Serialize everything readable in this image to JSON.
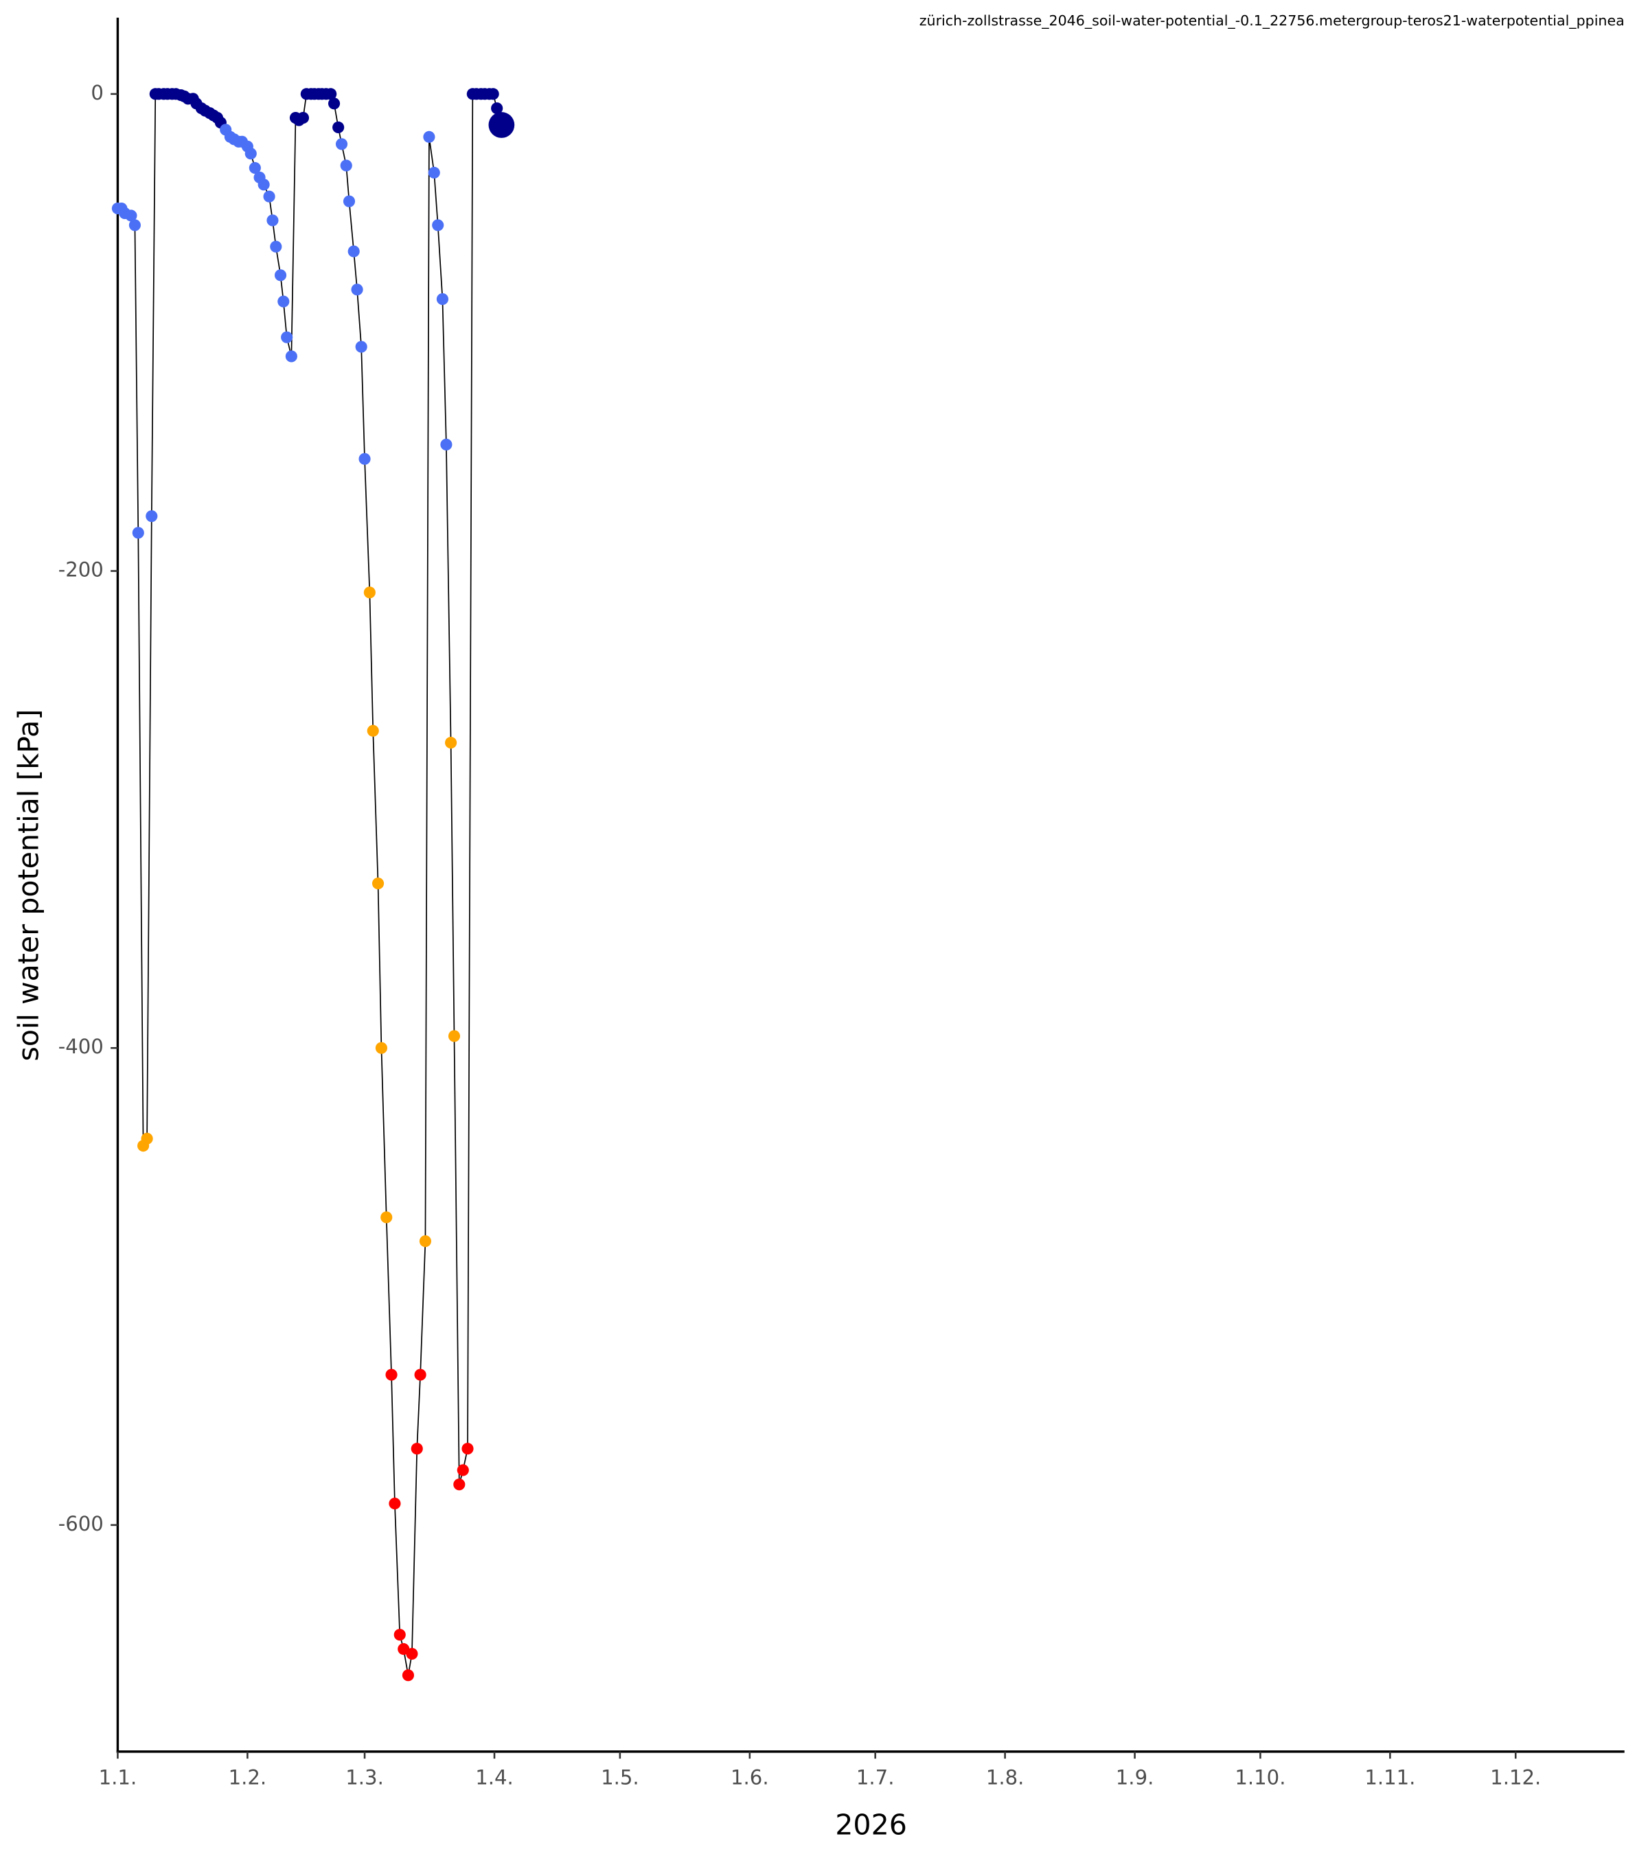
{
  "chart_data": {
    "type": "scatter-line",
    "title": "zürich-zollstrasse_2046_soil-water-potential_-0.1_22756.metergroup-teros21-waterpotential_ppinea",
    "x_label": "2026",
    "y_label": "soil water potential [kPa]",
    "xlim": [
      1,
      361
    ],
    "ylim": [
      -695,
      32
    ],
    "xticks": [
      {
        "value": 1,
        "label": "1.1."
      },
      {
        "value": 32,
        "label": "1.2."
      },
      {
        "value": 60,
        "label": "1.3."
      },
      {
        "value": 91,
        "label": "1.4."
      },
      {
        "value": 121,
        "label": "1.5."
      },
      {
        "value": 152,
        "label": "1.6."
      },
      {
        "value": 182,
        "label": "1.7."
      },
      {
        "value": 213,
        "label": "1.8."
      },
      {
        "value": 244,
        "label": "1.9."
      },
      {
        "value": 274,
        "label": "1.10."
      },
      {
        "value": 305,
        "label": "1.11."
      },
      {
        "value": 335,
        "label": "1.12."
      }
    ],
    "yticks": [
      -600,
      -400,
      -200,
      0
    ],
    "line_color": "#000000",
    "highlight_last": true,
    "x": [
      1,
      1.9,
      2.7,
      4.2,
      5.1,
      5.9,
      7.1,
      8,
      9.1,
      10,
      10.8,
      12,
      12.9,
      14,
      14.9,
      16.1,
      16.9,
      17.8,
      19,
      19.8,
      21,
      21.9,
      23,
      23.9,
      24.8,
      25.6,
      26.8,
      27.9,
      28.8,
      29.9,
      30.7,
      32,
      32.8,
      33.8,
      34.9,
      35.9,
      37.2,
      38,
      38.8,
      39.9,
      40.6,
      41.4,
      42.5,
      43.5,
      44.3,
      45.3,
      46.1,
      47.2,
      48,
      49,
      49.8,
      50.8,
      51.9,
      52.7,
      53.7,
      54.5,
      55.6,
      56.3,
      57.4,
      58.2,
      59.2,
      60,
      61.2,
      62,
      63.2,
      64,
      65.2,
      66.4,
      67.2,
      68.4,
      69.3,
      70.4,
      71.3,
      72.5,
      73.3,
      74.5,
      75.4,
      76.6,
      77.5,
      78.6,
      79.5,
      80.6,
      81.4,
      82.6,
      83.5,
      84.6,
      85.8,
      86.7,
      87.8,
      88.7,
      89.8,
      90.7,
      91.6,
      92.7
    ],
    "values": [
      -48,
      -48,
      -50,
      -51,
      -55,
      -184,
      -441,
      -438,
      -177,
      0,
      0,
      0,
      0,
      0,
      0,
      -0.5,
      -1,
      -2,
      -2,
      -4,
      -6,
      -7,
      -8,
      -9,
      -10,
      -12,
      -15,
      -18,
      -19,
      -20,
      -20,
      -22,
      -25,
      -31,
      -35,
      -38,
      -43,
      -53,
      -64,
      -76,
      -87,
      -102,
      -110,
      -10,
      -11,
      -10,
      0,
      0,
      0,
      0,
      0,
      0,
      0,
      -4,
      -14,
      -21,
      -30,
      -45,
      -66,
      -82,
      -106,
      -153,
      -209,
      -267,
      -331,
      -400,
      -471,
      -537,
      -591,
      -646,
      -652,
      -663,
      -654,
      -568,
      -537,
      -481,
      -18,
      -33,
      -55,
      -86,
      -147,
      -272,
      -395,
      -583,
      -577,
      -568,
      0,
      0,
      0,
      0,
      0,
      0,
      -6,
      -13
    ],
    "colors": [
      "#4b70f5",
      "#4b70f5",
      "#4b70f5",
      "#4b70f5",
      "#4b70f5",
      "#4b70f5",
      "#ffa500",
      "#ffa500",
      "#4b70f5",
      "#00008b",
      "#00008b",
      "#00008b",
      "#00008b",
      "#00008b",
      "#00008b",
      "#00008b",
      "#00008b",
      "#00008b",
      "#00008b",
      "#00008b",
      "#00008b",
      "#00008b",
      "#00008b",
      "#00008b",
      "#00008b",
      "#00008b",
      "#4b70f5",
      "#4b70f5",
      "#4b70f5",
      "#4b70f5",
      "#4b70f5",
      "#4b70f5",
      "#4b70f5",
      "#4b70f5",
      "#4b70f5",
      "#4b70f5",
      "#4b70f5",
      "#4b70f5",
      "#4b70f5",
      "#4b70f5",
      "#4b70f5",
      "#4b70f5",
      "#4b70f5",
      "#00008b",
      "#00008b",
      "#00008b",
      "#00008b",
      "#00008b",
      "#00008b",
      "#00008b",
      "#00008b",
      "#00008b",
      "#00008b",
      "#00008b",
      "#00008b",
      "#4b70f5",
      "#4b70f5",
      "#4b70f5",
      "#4b70f5",
      "#4b70f5",
      "#4b70f5",
      "#4b70f5",
      "#ffa500",
      "#ffa500",
      "#ffa500",
      "#ffa500",
      "#ffa500",
      "#ff0000",
      "#ff0000",
      "#ff0000",
      "#ff0000",
      "#ff0000",
      "#ff0000",
      "#ff0000",
      "#ff0000",
      "#ffa500",
      "#4b70f5",
      "#4b70f5",
      "#4b70f5",
      "#4b70f5",
      "#4b70f5",
      "#ffa500",
      "#ffa500",
      "#ff0000",
      "#ff0000",
      "#ff0000",
      "#00008b",
      "#00008b",
      "#00008b",
      "#00008b",
      "#00008b",
      "#00008b",
      "#00008b",
      "#00008b"
    ]
  }
}
